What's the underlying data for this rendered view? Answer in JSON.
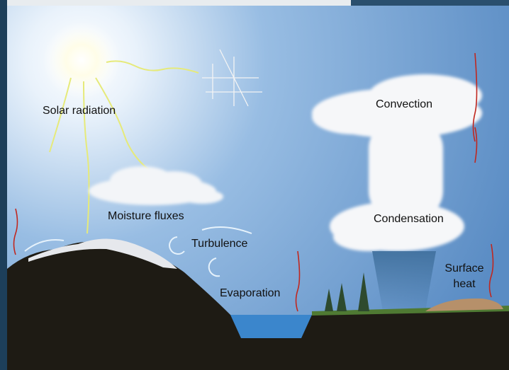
{
  "labels": {
    "solar_radiation": "Solar radiation",
    "convection": "Convection",
    "moisture_fluxes": "Moisture fluxes",
    "turbulence": "Turbulence",
    "condensation": "Condensation",
    "surface_heat": [
      "Surface",
      "heat"
    ],
    "evaporation": "Evaporation"
  }
}
